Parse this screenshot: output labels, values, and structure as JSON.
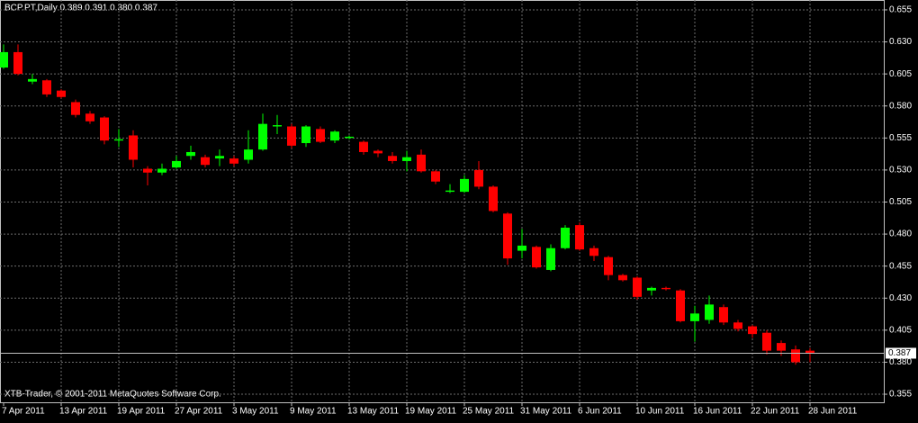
{
  "chart_data": {
    "type": "candlestick",
    "title": "BCP.PT,Daily  0.389 0.391 0.380 0.387",
    "footer": "XTB-Trader, © 2001-2011 MetaQuotes Software Corp.",
    "categories": [
      "7 Apr 2011",
      null,
      null,
      null,
      "13 Apr 2011",
      null,
      null,
      null,
      "19 Apr 2011",
      null,
      null,
      null,
      "27 Apr 2011",
      null,
      null,
      null,
      "3 May 2011",
      null,
      null,
      null,
      "9 May 2011",
      null,
      null,
      null,
      "13 May 2011",
      null,
      null,
      null,
      "19 May 2011",
      null,
      null,
      null,
      "25 May 2011",
      null,
      null,
      null,
      "31 May 2011",
      null,
      null,
      null,
      "6 Jun 2011",
      null,
      null,
      null,
      "10 Jun 2011",
      null,
      null,
      null,
      "16 Jun 2011",
      null,
      null,
      null,
      "22 Jun 2011",
      null,
      null,
      null,
      "28 Jun 2011"
    ],
    "open": [
      0.61,
      0.622,
      0.599,
      0.6,
      0.592,
      0.583,
      0.574,
      0.571,
      0.553,
      0.557,
      0.531,
      0.528,
      0.532,
      0.541,
      0.54,
      0.539,
      0.539,
      0.538,
      0.546,
      0.564,
      0.564,
      0.551,
      0.562,
      0.553,
      0.555,
      0.552,
      0.545,
      0.541,
      0.537,
      0.542,
      0.529,
      0.513,
      0.513,
      0.53,
      0.517,
      0.496,
      0.467,
      0.47,
      0.452,
      0.469,
      0.487,
      0.469,
      0.462,
      0.448,
      0.446,
      0.436,
      0.438,
      0.436,
      0.412,
      0.413,
      0.423,
      0.411,
      0.408,
      0.403,
      0.395,
      0.39,
      0.389
    ],
    "high": [
      0.628,
      0.628,
      0.605,
      0.601,
      0.593,
      0.585,
      0.576,
      0.572,
      0.562,
      0.561,
      0.533,
      0.535,
      0.541,
      0.549,
      0.542,
      0.546,
      0.541,
      0.561,
      0.574,
      0.573,
      0.566,
      0.565,
      0.564,
      0.561,
      0.557,
      0.553,
      0.546,
      0.544,
      0.545,
      0.546,
      0.53,
      0.519,
      0.526,
      0.537,
      0.518,
      0.497,
      0.484,
      0.471,
      0.472,
      0.487,
      0.489,
      0.471,
      0.463,
      0.449,
      0.447,
      0.439,
      0.439,
      0.437,
      0.424,
      0.432,
      0.425,
      0.413,
      0.409,
      0.405,
      0.397,
      0.393,
      0.391
    ],
    "low": [
      0.609,
      0.604,
      0.597,
      0.587,
      0.586,
      0.571,
      0.566,
      0.55,
      0.548,
      0.532,
      0.518,
      0.526,
      0.531,
      0.538,
      0.532,
      0.533,
      0.533,
      0.535,
      0.545,
      0.558,
      0.547,
      0.548,
      0.551,
      0.551,
      0.554,
      0.542,
      0.54,
      0.535,
      0.529,
      0.528,
      0.519,
      0.512,
      0.512,
      0.515,
      0.497,
      0.456,
      0.461,
      0.453,
      0.451,
      0.468,
      0.467,
      0.459,
      0.444,
      0.443,
      0.429,
      0.432,
      0.436,
      0.411,
      0.396,
      0.41,
      0.409,
      0.404,
      0.399,
      0.386,
      0.385,
      0.378,
      0.38
    ],
    "close": [
      0.622,
      0.605,
      0.601,
      0.589,
      0.587,
      0.573,
      0.568,
      0.553,
      0.554,
      0.538,
      0.528,
      0.531,
      0.537,
      0.544,
      0.534,
      0.541,
      0.535,
      0.546,
      0.566,
      0.565,
      0.549,
      0.564,
      0.552,
      0.56,
      0.556,
      0.544,
      0.543,
      0.537,
      0.54,
      0.529,
      0.521,
      0.514,
      0.523,
      0.517,
      0.498,
      0.461,
      0.471,
      0.454,
      0.469,
      0.485,
      0.468,
      0.463,
      0.448,
      0.444,
      0.431,
      0.438,
      0.437,
      0.412,
      0.418,
      0.425,
      0.411,
      0.406,
      0.402,
      0.389,
      0.389,
      0.38,
      0.387
    ],
    "up_color": "#00ff00",
    "down_color": "#ff0000",
    "current_price": 0.387,
    "ylim": [
      0.3487,
      0.6627
    ],
    "yticks": [
      0.655,
      {
        "value": 0.63,
        "label": "0.630"
      },
      0.605,
      {
        "value": 0.58,
        "label": "0.580"
      },
      0.555,
      {
        "value": 0.53,
        "label": "0.530"
      },
      0.505,
      {
        "value": 0.48,
        "label": "0.480"
      },
      0.455,
      {
        "value": 0.43,
        "label": "0.430"
      },
      0.405,
      {
        "value": 0.38,
        "label": "0.380"
      },
      0.355
    ],
    "grid": true
  }
}
